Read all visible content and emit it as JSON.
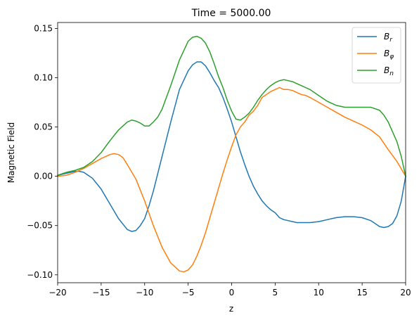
{
  "chart_data": {
    "type": "line",
    "title": "Time = 5000.00",
    "xlabel": "z",
    "ylabel": "Magnetic Field",
    "xlim": [
      -20,
      20
    ],
    "ylim": [
      -0.108,
      0.156
    ],
    "xticks": [
      -20,
      -15,
      -10,
      -5,
      0,
      5,
      10,
      15,
      20
    ],
    "xtick_labels": [
      "−20",
      "−15",
      "−10",
      "−5",
      "0",
      "5",
      "10",
      "15",
      "20"
    ],
    "yticks": [
      -0.1,
      -0.05,
      0.0,
      0.05,
      0.1,
      0.15
    ],
    "ytick_labels": [
      "−0.10",
      "−0.05",
      "0.00",
      "0.05",
      "0.10",
      "0.15"
    ],
    "grid": false,
    "legend_position": "top-right",
    "series": [
      {
        "name": "Br",
        "legend_base": "B",
        "legend_sub": "r",
        "color": "#1f77b4",
        "x": [
          -20,
          -19,
          -18,
          -17.5,
          -17,
          -16,
          -15,
          -14,
          -13,
          -12,
          -11.5,
          -11,
          -10.5,
          -10,
          -9.5,
          -9,
          -8,
          -7,
          -6,
          -5,
          -4.5,
          -4,
          -3.5,
          -3,
          -2.5,
          -2,
          -1.5,
          -1,
          -0.5,
          0,
          0.5,
          1,
          1.5,
          2,
          2.5,
          3,
          3.5,
          4,
          4.5,
          5,
          5.5,
          6,
          6.5,
          7,
          7.5,
          8,
          8.5,
          9,
          10,
          11,
          12,
          13,
          14,
          15,
          16,
          16.5,
          17,
          17.5,
          18,
          18.5,
          19,
          19.5,
          20
        ],
        "y": [
          0.001,
          0.003,
          0.005,
          0.005,
          0.004,
          -0.002,
          -0.013,
          -0.028,
          -0.043,
          -0.054,
          -0.056,
          -0.055,
          -0.05,
          -0.043,
          -0.03,
          -0.015,
          0.02,
          0.055,
          0.088,
          0.107,
          0.113,
          0.116,
          0.116,
          0.112,
          0.105,
          0.097,
          0.09,
          0.08,
          0.068,
          0.055,
          0.04,
          0.025,
          0.012,
          0.0,
          -0.01,
          -0.018,
          -0.025,
          -0.03,
          -0.034,
          -0.037,
          -0.042,
          -0.044,
          -0.045,
          -0.046,
          -0.047,
          -0.047,
          -0.047,
          -0.047,
          -0.046,
          -0.044,
          -0.042,
          -0.041,
          -0.041,
          -0.042,
          -0.045,
          -0.048,
          -0.051,
          -0.052,
          -0.051,
          -0.048,
          -0.04,
          -0.025,
          0.0
        ]
      },
      {
        "name": "Bφ",
        "legend_base": "B",
        "legend_sub": "φ",
        "color": "#ff7f0e",
        "x": [
          -20,
          -19,
          -18,
          -17,
          -16,
          -15,
          -14,
          -13.5,
          -13,
          -12.5,
          -12,
          -11,
          -10,
          -9,
          -8,
          -7,
          -6,
          -5.5,
          -5,
          -4.5,
          -4,
          -3.5,
          -3,
          -2.5,
          -2,
          -1.5,
          -1,
          -0.5,
          0,
          0.5,
          1,
          1.5,
          2,
          2.5,
          3,
          3.5,
          4,
          4.5,
          5,
          5.5,
          6,
          6.5,
          7,
          7.5,
          8,
          8.5,
          9,
          10,
          11,
          12,
          13,
          14,
          15,
          16,
          17,
          18,
          19,
          20
        ],
        "y": [
          0.0,
          0.001,
          0.004,
          0.008,
          0.013,
          0.018,
          0.022,
          0.023,
          0.022,
          0.019,
          0.012,
          -0.003,
          -0.025,
          -0.05,
          -0.072,
          -0.088,
          -0.096,
          -0.097,
          -0.095,
          -0.09,
          -0.081,
          -0.07,
          -0.057,
          -0.042,
          -0.027,
          -0.012,
          0.003,
          0.017,
          0.03,
          0.042,
          0.05,
          0.055,
          0.062,
          0.066,
          0.072,
          0.08,
          0.083,
          0.086,
          0.088,
          0.09,
          0.088,
          0.088,
          0.087,
          0.085,
          0.083,
          0.082,
          0.08,
          0.075,
          0.07,
          0.065,
          0.06,
          0.056,
          0.052,
          0.047,
          0.04,
          0.027,
          0.015,
          0.0
        ]
      },
      {
        "name": "Bn",
        "legend_base": "B",
        "legend_sub": "n",
        "color": "#2ca02c",
        "x": [
          -20,
          -19,
          -18,
          -17,
          -16,
          -15,
          -14,
          -13,
          -12,
          -11.5,
          -11,
          -10.5,
          -10,
          -9.5,
          -9,
          -8.5,
          -8,
          -7,
          -6,
          -5,
          -4.5,
          -4,
          -3.5,
          -3,
          -2.5,
          -2,
          -1.5,
          -1,
          -0.5,
          0,
          0.5,
          1,
          1.5,
          2,
          2.5,
          3,
          3.5,
          4,
          4.5,
          5,
          5.5,
          6,
          6.5,
          7,
          7.5,
          8,
          8.5,
          9,
          10,
          11,
          12,
          13,
          14,
          15,
          16,
          17,
          17.5,
          18,
          18.5,
          19,
          19.5,
          20
        ],
        "y": [
          0.001,
          0.004,
          0.006,
          0.009,
          0.015,
          0.024,
          0.036,
          0.047,
          0.055,
          0.057,
          0.056,
          0.054,
          0.051,
          0.051,
          0.055,
          0.06,
          0.068,
          0.092,
          0.118,
          0.137,
          0.141,
          0.142,
          0.14,
          0.135,
          0.126,
          0.114,
          0.101,
          0.09,
          0.077,
          0.066,
          0.058,
          0.057,
          0.06,
          0.064,
          0.07,
          0.077,
          0.083,
          0.088,
          0.092,
          0.095,
          0.097,
          0.098,
          0.097,
          0.096,
          0.094,
          0.092,
          0.09,
          0.088,
          0.082,
          0.076,
          0.072,
          0.07,
          0.07,
          0.07,
          0.07,
          0.067,
          0.062,
          0.055,
          0.045,
          0.035,
          0.02,
          0.0
        ]
      }
    ]
  }
}
